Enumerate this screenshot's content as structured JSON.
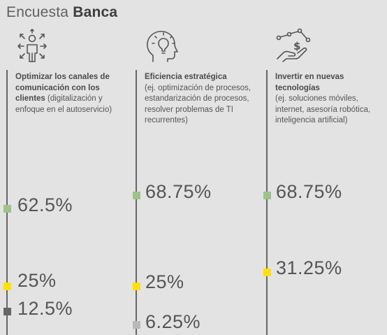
{
  "header": {
    "title_prefix": "Encuesta",
    "title_bold": "Banca"
  },
  "colors": {
    "green": "#9dc28b",
    "yellow": "#ffe100",
    "darkgray": "#666666",
    "lightgray": "#b9b9b9",
    "line": "#666666"
  },
  "chart_data": {
    "type": "table",
    "title": "Encuesta Banca",
    "columns": [
      {
        "heading": "Optimizar los canales de comunicación con los clientes",
        "detail": "(digitalización y enfoque en el autoservicio)",
        "icon": "person-arrows-icon",
        "values": [
          {
            "label": "62.5%",
            "value": 62.5,
            "color": "green"
          },
          {
            "label": "25%",
            "value": 25,
            "color": "yellow"
          },
          {
            "label": "12.5%",
            "value": 12.5,
            "color": "darkgray"
          }
        ]
      },
      {
        "heading": "Eficiencia estratégica",
        "detail": "(ej. optimización de procesos, estandarización de procesos, resolver problemas de TI recurrentes)",
        "icon": "head-lightbulb-icon",
        "values": [
          {
            "label": "68.75%",
            "value": 68.75,
            "color": "green"
          },
          {
            "label": "25%",
            "value": 25,
            "color": "yellow"
          },
          {
            "label": "6.25%",
            "value": 6.25,
            "color": "lightgray"
          }
        ]
      },
      {
        "heading": "Invertir en nuevas tecnologías",
        "detail": "(ej. soluciones móviles, internet, asesoría robótica, inteligencia artificial)",
        "icon": "hand-money-network-icon",
        "values": [
          {
            "label": "68.75%",
            "value": 68.75,
            "color": "green"
          },
          {
            "label": "31.25%",
            "value": 31.25,
            "color": "yellow"
          }
        ]
      }
    ]
  }
}
